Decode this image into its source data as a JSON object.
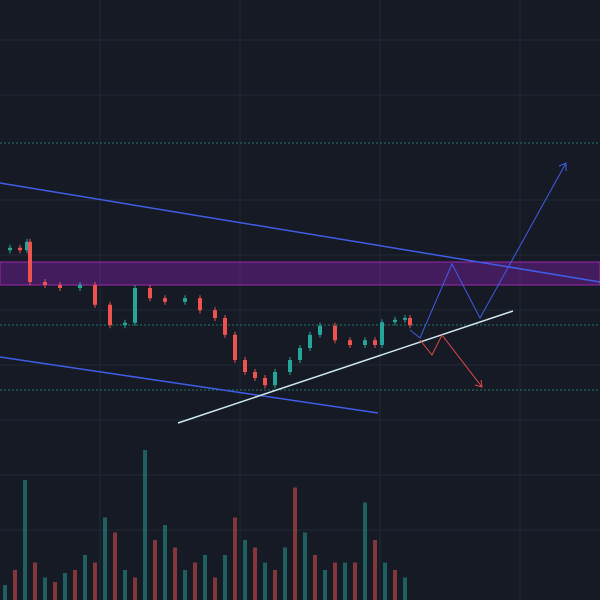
{
  "chart_data": {
    "type": "candlestick",
    "x": [
      0,
      10,
      20,
      27,
      30,
      45,
      60,
      80,
      95,
      110,
      125,
      135,
      150,
      165,
      185,
      200,
      215,
      225,
      235,
      245,
      255,
      265,
      275,
      290,
      300,
      310,
      320,
      335,
      350,
      365,
      375,
      382,
      395,
      405,
      410
    ],
    "values": [
      58.3,
      58.7,
      58.3,
      59.7,
      53,
      52.5,
      52,
      52.5,
      49.2,
      45.8,
      46.2,
      52,
      50.3,
      49.7,
      50.3,
      48.3,
      47,
      44.2,
      40,
      38,
      37,
      35.8,
      38,
      40,
      42,
      44.2,
      45.7,
      43.3,
      42.5,
      43.3,
      42.5,
      46.3,
      46.7,
      47,
      45.8
    ],
    "xlim": [
      0,
      600
    ],
    "ylim": [
      0,
      100
    ],
    "up_color": "#26a69a",
    "down_color": "#ef5350",
    "volume": {
      "x": [
        5,
        15,
        25,
        35,
        45,
        55,
        65,
        75,
        85,
        95,
        105,
        115,
        125,
        135,
        145,
        155,
        165,
        175,
        185,
        195,
        205,
        215,
        225,
        235,
        245,
        255,
        265,
        275,
        285,
        295,
        305,
        315,
        325,
        335,
        345,
        355,
        365,
        375,
        385,
        395,
        405
      ],
      "values": [
        10,
        20,
        80,
        25,
        15,
        12,
        18,
        20,
        30,
        25,
        55,
        45,
        20,
        15,
        100,
        40,
        50,
        35,
        20,
        25,
        30,
        15,
        30,
        55,
        40,
        35,
        25,
        20,
        35,
        75,
        45,
        30,
        20,
        25,
        25,
        25,
        65,
        40,
        25,
        20,
        15
      ],
      "ylim": [
        0,
        100
      ],
      "colors": [
        "#26a69a",
        "#ef5350"
      ]
    }
  }
}
